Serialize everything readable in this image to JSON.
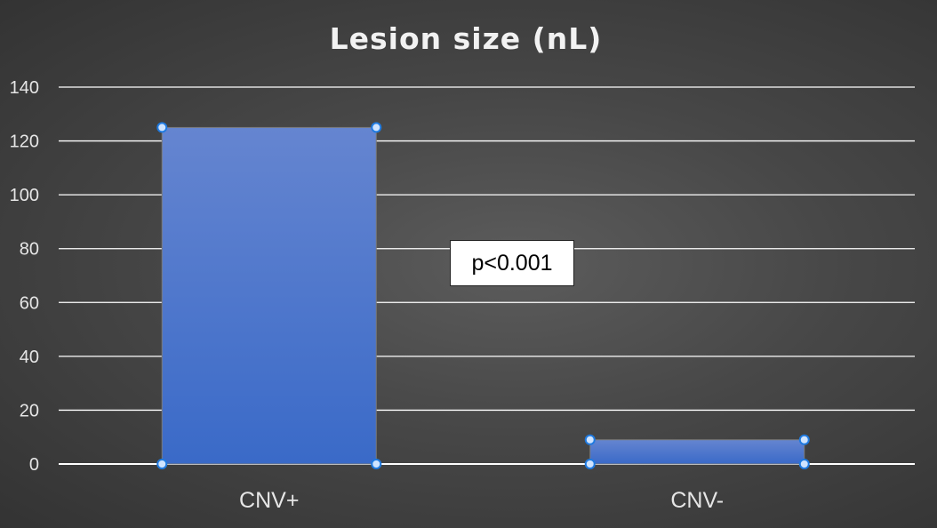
{
  "chart_data": {
    "type": "bar",
    "title": "Lesion size (nL)",
    "categories": [
      "CNV+",
      "CNV-"
    ],
    "values": [
      125,
      9
    ],
    "ylim": [
      0,
      140
    ],
    "yticks": [
      0,
      20,
      40,
      60,
      80,
      100,
      120,
      140
    ],
    "grid": true,
    "annotation": "p<0.001",
    "colors": {
      "bar_top": "#6585d0",
      "bar_bottom": "#3a6ac8",
      "handle_fill": "#cfe4ff",
      "handle_stroke": "#1f7ae0",
      "grid": "#ffffff"
    }
  }
}
